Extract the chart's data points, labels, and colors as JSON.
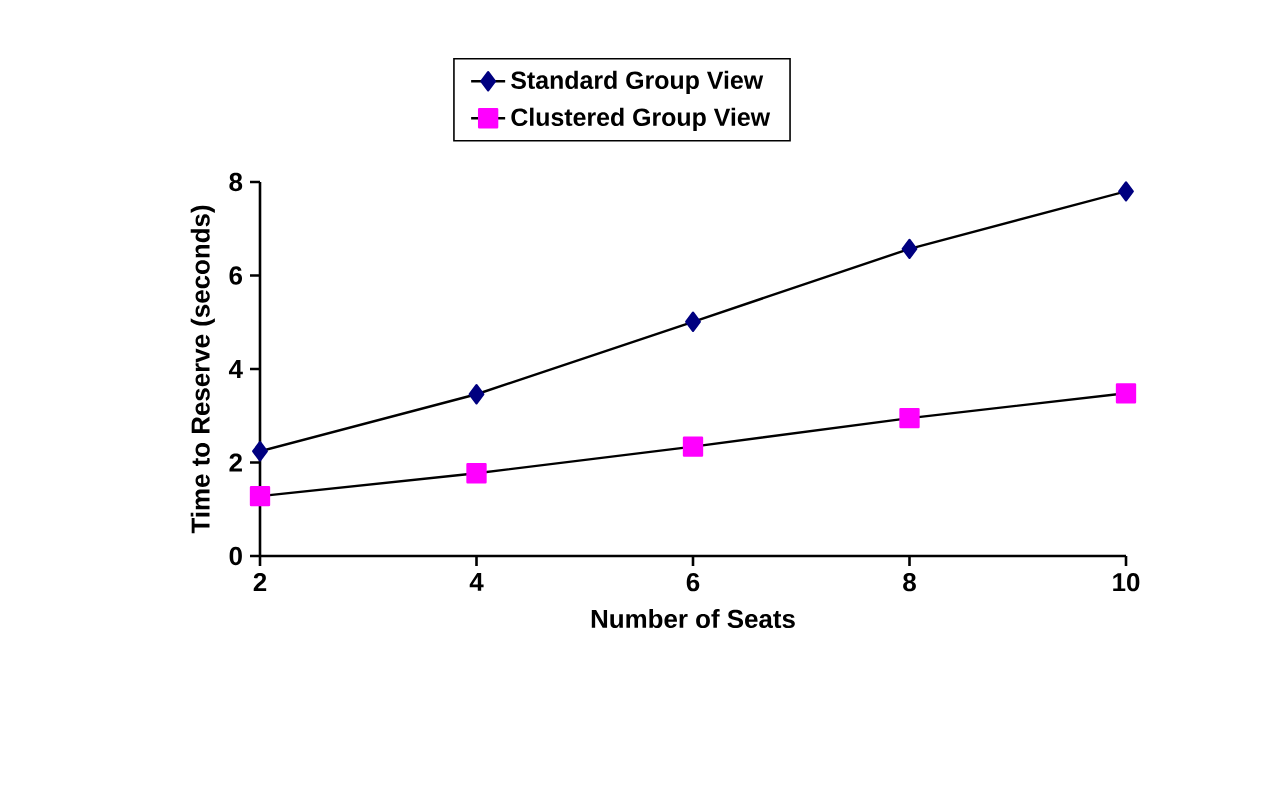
{
  "chart_data": {
    "type": "line",
    "xlabel": "Number of Seats",
    "ylabel": "Time to Reserve (seconds)",
    "x": [
      2,
      4,
      6,
      8,
      10
    ],
    "series": [
      {
        "name": "Standard Group View",
        "color": "#000080",
        "marker": "diamond",
        "values": [
          2.24,
          3.46,
          5.01,
          6.57,
          7.8
        ]
      },
      {
        "name": "Clustered Group View",
        "color": "#ff00ff",
        "marker": "square",
        "values": [
          1.28,
          1.77,
          2.34,
          2.95,
          3.48
        ]
      }
    ],
    "xlim": [
      2,
      10
    ],
    "xticks": [
      2,
      4,
      6,
      8,
      10
    ],
    "ylim": [
      0,
      8
    ],
    "yticks": [
      0,
      2,
      4,
      6,
      8
    ],
    "grid": false,
    "legend": "top",
    "line_style": "solid"
  }
}
